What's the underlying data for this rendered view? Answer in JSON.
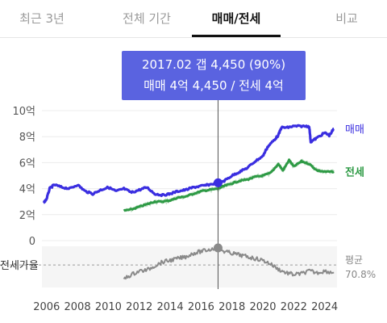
{
  "tabs": [
    {
      "label": "최근 3년",
      "active": false
    },
    {
      "label": "전체 기간",
      "active": false
    },
    {
      "label": "매매/전세",
      "active": true
    },
    {
      "label": "비교",
      "active": false
    }
  ],
  "tooltip": {
    "line1": "2017.02  갭 4,450 (90%)",
    "line2": "매매 4억 4,450 / 전세 4억"
  },
  "colors": {
    "sale": "#3a2ee0",
    "jeonse": "#2e9a45",
    "ratio": "#8a8a8a",
    "tooltip": "#5a63e0"
  },
  "ratio_panel": {
    "label": "전세가율",
    "avg_label": "평균",
    "avg_value": "70.8%",
    "avg_ratio": 70.8
  },
  "chart_data": {
    "type": "line",
    "x_range": [
      2005.7,
      2024.8
    ],
    "x_ticks": [
      "2006",
      "2008",
      "2010",
      "2012",
      "2014",
      "2016",
      "2018",
      "2020",
      "2022",
      "2024"
    ],
    "y_range": [
      0,
      10
    ],
    "y_ticks": [
      "10억",
      "8억",
      "6억",
      "4억",
      "2억",
      "0"
    ],
    "highlight": {
      "x": 2017.1,
      "sale": 4.45,
      "jeonse": 4.0,
      "ratio": 90
    },
    "series": [
      {
        "name": "매매",
        "points": [
          [
            2005.8,
            2.9
          ],
          [
            2006.0,
            3.2
          ],
          [
            2006.2,
            4.0
          ],
          [
            2006.5,
            4.3
          ],
          [
            2007.0,
            4.1
          ],
          [
            2007.5,
            4.0
          ],
          [
            2008.0,
            4.3
          ],
          [
            2008.5,
            3.8
          ],
          [
            2009.0,
            3.6
          ],
          [
            2009.5,
            3.9
          ],
          [
            2010.0,
            4.1
          ],
          [
            2010.5,
            3.8
          ],
          [
            2011.0,
            4.0
          ],
          [
            2011.5,
            3.7
          ],
          [
            2012.0,
            3.9
          ],
          [
            2012.5,
            4.1
          ],
          [
            2013.0,
            3.6
          ],
          [
            2013.5,
            3.5
          ],
          [
            2014.0,
            3.6
          ],
          [
            2014.5,
            3.8
          ],
          [
            2015.0,
            3.9
          ],
          [
            2015.5,
            4.1
          ],
          [
            2016.0,
            4.2
          ],
          [
            2016.5,
            4.3
          ],
          [
            2017.1,
            4.45
          ],
          [
            2017.5,
            4.6
          ],
          [
            2018.0,
            5.0
          ],
          [
            2018.5,
            5.3
          ],
          [
            2019.0,
            5.6
          ],
          [
            2019.5,
            6.1
          ],
          [
            2020.0,
            6.5
          ],
          [
            2020.3,
            7.2
          ],
          [
            2020.7,
            7.7
          ],
          [
            2021.0,
            8.1
          ],
          [
            2021.2,
            8.7
          ],
          [
            2021.6,
            8.7
          ],
          [
            2022.0,
            8.8
          ],
          [
            2022.5,
            8.8
          ],
          [
            2023.0,
            8.8
          ],
          [
            2023.1,
            7.6
          ],
          [
            2023.5,
            7.9
          ],
          [
            2024.0,
            8.3
          ],
          [
            2024.3,
            8.1
          ],
          [
            2024.6,
            8.6
          ]
        ]
      },
      {
        "name": "전세",
        "points": [
          [
            2011.0,
            2.3
          ],
          [
            2011.5,
            2.4
          ],
          [
            2012.0,
            2.6
          ],
          [
            2012.5,
            2.8
          ],
          [
            2013.0,
            3.0
          ],
          [
            2013.5,
            3.0
          ],
          [
            2014.0,
            3.1
          ],
          [
            2014.5,
            3.3
          ],
          [
            2015.0,
            3.4
          ],
          [
            2015.5,
            3.6
          ],
          [
            2016.0,
            3.8
          ],
          [
            2016.5,
            3.9
          ],
          [
            2017.1,
            4.0
          ],
          [
            2017.5,
            4.2
          ],
          [
            2018.0,
            4.4
          ],
          [
            2018.5,
            4.6
          ],
          [
            2019.0,
            4.7
          ],
          [
            2019.5,
            4.9
          ],
          [
            2020.0,
            5.0
          ],
          [
            2020.5,
            5.2
          ],
          [
            2021.0,
            5.9
          ],
          [
            2021.3,
            5.4
          ],
          [
            2021.7,
            6.2
          ],
          [
            2022.0,
            5.7
          ],
          [
            2022.5,
            6.1
          ],
          [
            2023.0,
            5.9
          ],
          [
            2023.5,
            5.4
          ],
          [
            2024.0,
            5.3
          ],
          [
            2024.6,
            5.3
          ]
        ]
      },
      {
        "name": "전세가율",
        "points": [
          [
            2011.0,
            55
          ],
          [
            2011.5,
            60
          ],
          [
            2012.0,
            64
          ],
          [
            2012.5,
            65
          ],
          [
            2013.0,
            70
          ],
          [
            2013.5,
            74
          ],
          [
            2014.0,
            76
          ],
          [
            2014.5,
            78
          ],
          [
            2015.0,
            80
          ],
          [
            2015.5,
            84
          ],
          [
            2016.0,
            86
          ],
          [
            2016.5,
            88
          ],
          [
            2017.1,
            90
          ],
          [
            2017.5,
            86
          ],
          [
            2018.0,
            84
          ],
          [
            2018.5,
            82
          ],
          [
            2019.0,
            80
          ],
          [
            2019.5,
            78
          ],
          [
            2020.0,
            76
          ],
          [
            2020.5,
            72
          ],
          [
            2021.0,
            66
          ],
          [
            2021.5,
            62
          ],
          [
            2022.0,
            60
          ],
          [
            2022.5,
            61
          ],
          [
            2023.0,
            64
          ],
          [
            2023.5,
            62
          ],
          [
            2024.0,
            64
          ],
          [
            2024.6,
            62
          ]
        ]
      }
    ]
  }
}
